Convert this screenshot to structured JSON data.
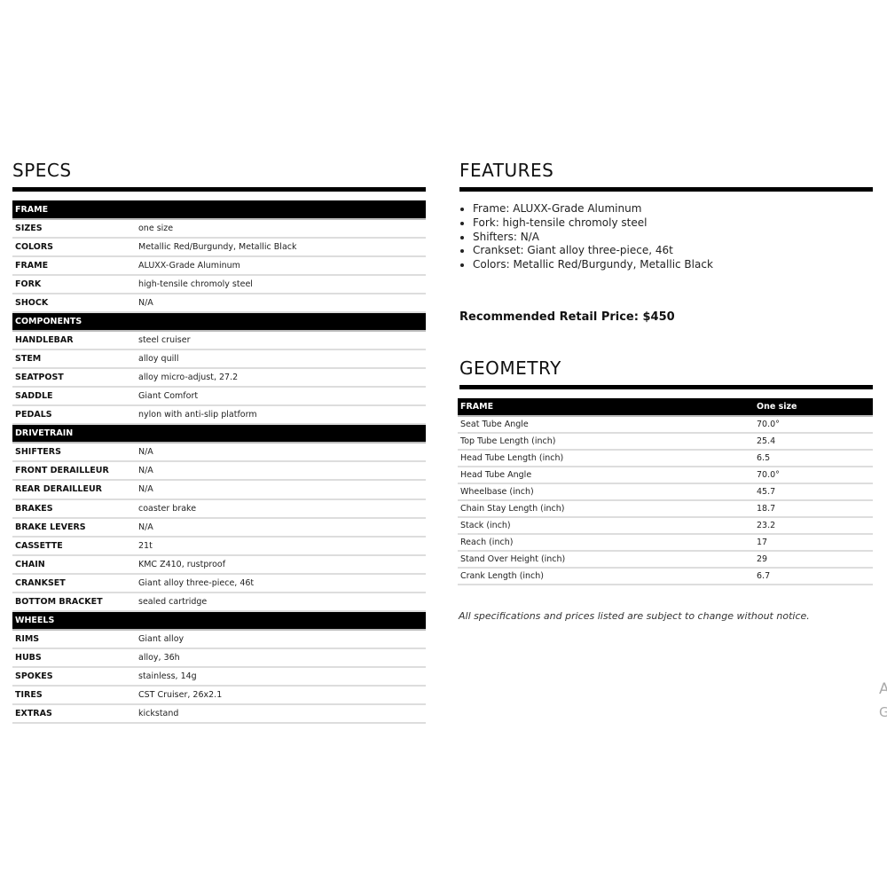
{
  "specs": {
    "title": "SPECS",
    "sections": [
      {
        "name": "FRAME",
        "rows": [
          [
            "SIZES",
            "one size"
          ],
          [
            "COLORS",
            "Metallic Red/Burgundy, Metallic Black"
          ],
          [
            "FRAME",
            "ALUXX-Grade Aluminum"
          ],
          [
            "FORK",
            "high-tensile chromoly steel"
          ],
          [
            "SHOCK",
            "N/A"
          ]
        ]
      },
      {
        "name": "COMPONENTS",
        "rows": [
          [
            "HANDLEBAR",
            "steel cruiser"
          ],
          [
            "STEM",
            "alloy quill"
          ],
          [
            "SEATPOST",
            "alloy micro-adjust, 27.2"
          ],
          [
            "SADDLE",
            "Giant Comfort"
          ],
          [
            "PEDALS",
            "nylon with anti-slip platform"
          ]
        ]
      },
      {
        "name": "DRIVETRAIN",
        "rows": [
          [
            "SHIFTERS",
            "N/A"
          ],
          [
            "FRONT DERAILLEUR",
            "N/A"
          ],
          [
            "REAR DERAILLEUR",
            "N/A"
          ],
          [
            "BRAKES",
            "coaster brake"
          ],
          [
            "BRAKE LEVERS",
            "N/A"
          ],
          [
            "CASSETTE",
            "21t"
          ],
          [
            "CHAIN",
            "KMC Z410, rustproof"
          ],
          [
            "CRANKSET",
            "Giant alloy three-piece, 46t"
          ],
          [
            "BOTTOM BRACKET",
            "sealed cartridge"
          ]
        ]
      },
      {
        "name": "WHEELS",
        "rows": [
          [
            "RIMS",
            "Giant alloy"
          ],
          [
            "HUBS",
            "alloy, 36h"
          ],
          [
            "SPOKES",
            "stainless, 14g"
          ],
          [
            "TIRES",
            "CST Cruiser, 26x2.1"
          ],
          [
            "EXTRAS",
            "kickstand"
          ]
        ]
      }
    ]
  },
  "features": {
    "title": "FEATURES",
    "items": [
      "Frame: ALUXX-Grade Aluminum",
      "Fork: high-tensile chromoly steel",
      "Shifters: N/A",
      "Crankset: Giant alloy three-piece, 46t",
      "Colors: Metallic Red/Burgundy, Metallic Black"
    ]
  },
  "price": "Recommended Retail Price: $450",
  "geometry": {
    "title": "GEOMETRY",
    "header": [
      "FRAME",
      "One size"
    ],
    "rows": [
      [
        "Seat Tube Angle",
        "70.0°"
      ],
      [
        "Top Tube Length (inch)",
        "25.4"
      ],
      [
        "Head Tube Length (inch)",
        "6.5"
      ],
      [
        "Head Tube Angle",
        "70.0°"
      ],
      [
        "Wheelbase (inch)",
        "45.7"
      ],
      [
        "Chain Stay Length (inch)",
        "18.7"
      ],
      [
        "Stack (inch)",
        "23.2"
      ],
      [
        "Reach (inch)",
        "17"
      ],
      [
        "Stand Over Height (inch)",
        "29"
      ],
      [
        "Crank Length (inch)",
        "6.7"
      ]
    ]
  },
  "note": "All specifications and prices listed are subject to change without notice.",
  "watermark": [
    "A",
    "G"
  ]
}
